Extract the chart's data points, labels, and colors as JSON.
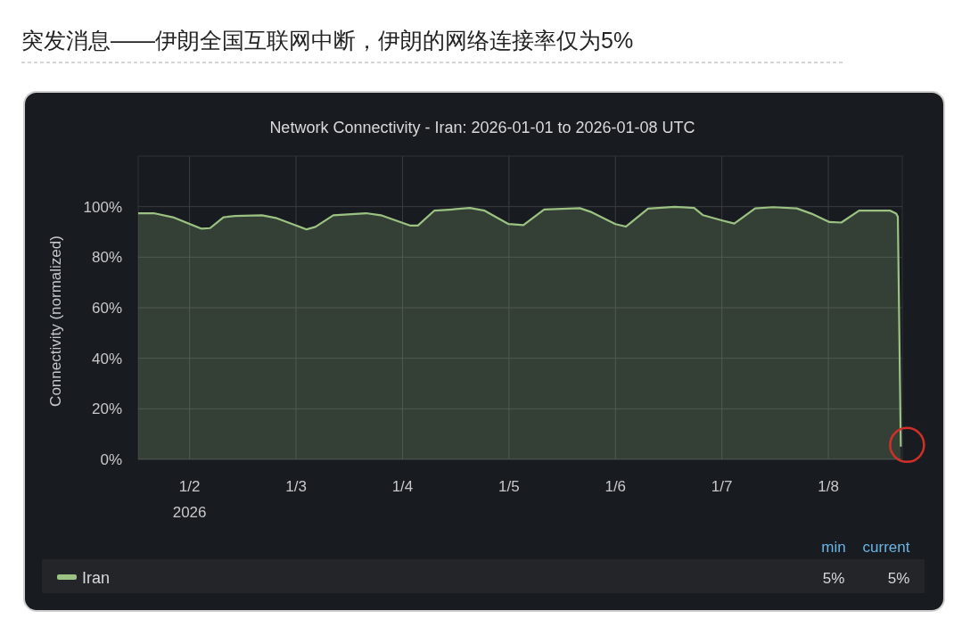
{
  "chart_data": {
    "type": "area",
    "title": "突发消息——伊朗全国互联网中断，伊朗的网络连接率仅为5%",
    "subtitle": "Network Connectivity - Iran: 2026-01-01 to 2026-01-08 UTC",
    "ylabel": "Connectivity (normalized)",
    "x": [
      "2026-01-01T12:25",
      "2026-01-01T15:55",
      "2026-01-01T20:15",
      "2026-01-02T02:37",
      "2026-01-02T04:37",
      "2026-01-02T07:38",
      "2026-01-02T10:18",
      "2026-01-02T16:20",
      "2026-01-02T19:41",
      "2026-01-03T02:22",
      "2026-01-03T04:22",
      "2026-01-03T08:24",
      "2026-01-03T15:46",
      "2026-01-03T19:07",
      "2026-01-04T01:48",
      "2026-01-04T03:28",
      "2026-01-04T07:09",
      "2026-01-04T10:30",
      "2026-01-04T15:11",
      "2026-01-04T18:31",
      "2026-01-04T23:55",
      "2026-01-05T03:15",
      "2026-01-05T07:56",
      "2026-01-05T15:58",
      "2026-01-05T18:39",
      "2026-01-06T00:00",
      "2026-01-06T02:21",
      "2026-01-06T07:22",
      "2026-01-06T13:24",
      "2026-01-06T17:45",
      "2026-01-06T19:46",
      "2026-01-07T00:07",
      "2026-01-07T02:48",
      "2026-01-07T07:30",
      "2026-01-07T11:31",
      "2026-01-07T16:52",
      "2026-01-07T20:13",
      "2026-01-08T00:14",
      "2026-01-08T02:55",
      "2026-01-08T06:56",
      "2026-01-08T13:58",
      "2026-01-08T15:18",
      "2026-01-08T15:40",
      "2026-01-08T16:20"
    ],
    "series": [
      {
        "name": "Iran",
        "color": "#9cc283",
        "values": [
          97.4,
          97.4,
          95.8,
          91.3,
          91.5,
          95.8,
          96.3,
          96.6,
          95.4,
          91.0,
          92.0,
          96.6,
          97.4,
          96.6,
          92.5,
          92.5,
          98.4,
          98.8,
          99.5,
          98.4,
          93.1,
          92.7,
          98.9,
          99.4,
          97.8,
          93.1,
          92.1,
          99.2,
          99.9,
          99.5,
          96.6,
          94.5,
          93.3,
          99.3,
          99.8,
          99.3,
          97.2,
          93.9,
          93.7,
          98.4,
          98.4,
          97.2,
          96,
          5
        ]
      }
    ],
    "xlim": [
      "2026-01-01T12:25",
      "2026-01-08T16:40"
    ],
    "xticks": [
      {
        "value": "2026-01-02",
        "label": "1/2\n2026"
      },
      {
        "value": "2026-01-03",
        "label": "1/3"
      },
      {
        "value": "2026-01-04",
        "label": "1/4"
      },
      {
        "value": "2026-01-05",
        "label": "1/5"
      },
      {
        "value": "2026-01-06",
        "label": "1/6"
      },
      {
        "value": "2026-01-07",
        "label": "1/7"
      },
      {
        "value": "2026-01-08",
        "label": "1/8"
      }
    ],
    "ylim": [
      0,
      120
    ],
    "yticks": [
      {
        "value": 0,
        "label": "0%"
      },
      {
        "value": 20,
        "label": "20%"
      },
      {
        "value": 40,
        "label": "40%"
      },
      {
        "value": 60,
        "label": "60%"
      },
      {
        "value": 80,
        "label": "80%"
      },
      {
        "value": 100,
        "label": "100%"
      }
    ],
    "grid": true,
    "legend": "bottom",
    "annotations": [
      "min",
      "current",
      "5%",
      "5%"
    ]
  }
}
